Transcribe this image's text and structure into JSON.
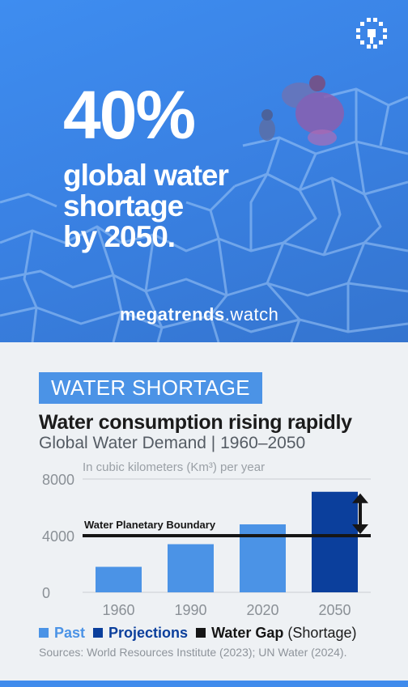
{
  "hero": {
    "percent": "40%",
    "headline_line1": "global water",
    "headline_line2": "shortage",
    "headline_line3": "by 2050.",
    "brand_bold": "megatrends",
    "brand_rest": ".watch"
  },
  "section": {
    "tag": "WATER SHORTAGE",
    "title": "Water consumption rising rapidly",
    "subtitle": "Global Water Demand | 1960–2050"
  },
  "legend": {
    "items": [
      {
        "label": "Past",
        "color": "#4b93e6",
        "suffix": ""
      },
      {
        "label": "Projections",
        "color": "#0b3f9c",
        "suffix": ""
      },
      {
        "label": "Water Gap",
        "color": "#161616",
        "suffix": "(Shortage)"
      }
    ]
  },
  "sources": "Sources: World Resources Institute (2023); UN Water (2024).",
  "chart_data": {
    "type": "bar",
    "unit_label": "In cubic kilometers (Km³) per year",
    "categories": [
      "1960",
      "1990",
      "2020",
      "2050"
    ],
    "values": [
      1800,
      3400,
      4800,
      7100
    ],
    "bar_colors": [
      "#4b93e6",
      "#4b93e6",
      "#4b93e6",
      "#0b3f9c"
    ],
    "yticks": [
      0,
      4000,
      8000
    ],
    "ylim": [
      0,
      8000
    ],
    "grid": true,
    "boundary": {
      "label": "Water Planetary Boundary",
      "value": 4000,
      "color": "#161616"
    },
    "gap_arrow_color": "#161616"
  }
}
